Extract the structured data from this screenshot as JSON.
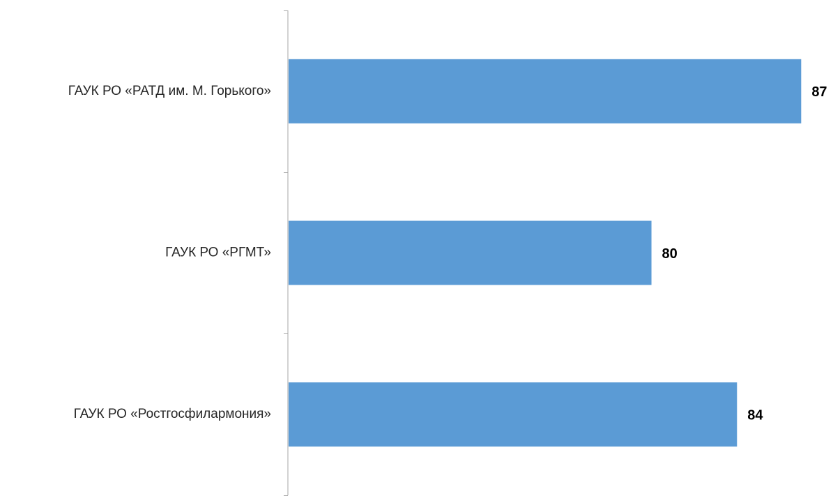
{
  "chart_data": {
    "type": "bar",
    "orientation": "horizontal",
    "categories": [
      "ГАУК РО «РАТД им. М. Горького»",
      "ГАУК РО «РГМТ»",
      "ГАУК РО «Ростгосфилармония»"
    ],
    "values": [
      87,
      80,
      84
    ],
    "data_labels": [
      "87",
      "80",
      "84"
    ],
    "title": "",
    "xlabel": "",
    "ylabel": "",
    "xlim": [
      63,
      88
    ],
    "grid": false,
    "legend": "none",
    "bar_color": "#5B9BD5",
    "axis_color": "#A6A6A6"
  }
}
